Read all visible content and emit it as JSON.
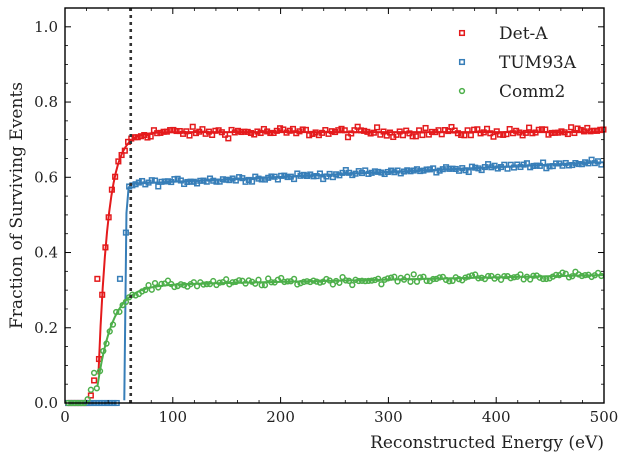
{
  "chart_data": {
    "type": "scatter",
    "title": "",
    "xlabel": "Reconstructed Energy (eV)",
    "ylabel": "Fraction of Surviving Events",
    "xlim": [
      0,
      500
    ],
    "ylim": [
      0,
      1.05
    ],
    "x_ticks": [
      0,
      100,
      200,
      300,
      400,
      500
    ],
    "y_ticks": [
      0.0,
      0.2,
      0.4,
      0.6,
      0.8,
      1.0
    ],
    "x_tick_labels": [
      "0",
      "100",
      "200",
      "300",
      "400",
      "500"
    ],
    "y_tick_labels": [
      "0.0",
      "0.2",
      "0.4",
      "0.6",
      "0.8",
      "1.0"
    ],
    "threshold_line": {
      "x": 61,
      "style": "dotted",
      "color": "#333333"
    },
    "legend_position": "top-right",
    "series": [
      {
        "name": "Det-A",
        "color": "#e41a1c",
        "marker": "square",
        "threshold": 30,
        "plateau": 0.72,
        "rise_scale": 9,
        "noise": 0.009,
        "drift": 0.0,
        "fit_start": 31,
        "low_points": [
          [
            3,
            0.0
          ],
          [
            6,
            0.0
          ],
          [
            9,
            0.0
          ],
          [
            12,
            0.0
          ],
          [
            15,
            0.0
          ],
          [
            18,
            0.0
          ],
          [
            21,
            0.0
          ],
          [
            24,
            0.02
          ],
          [
            27,
            0.06
          ],
          [
            30,
            0.33
          ]
        ]
      },
      {
        "name": "TUM93A",
        "color": "#377eb8",
        "marker": "square",
        "threshold": 55,
        "plateau": 0.575,
        "rise_scale": 1,
        "noise": 0.006,
        "drift": 0.00013,
        "fit_start": 55,
        "low_points": [
          [
            3,
            0.0
          ],
          [
            6,
            0.0
          ],
          [
            9,
            0.0
          ],
          [
            12,
            0.0
          ],
          [
            15,
            0.0
          ],
          [
            18,
            0.0
          ],
          [
            21,
            0.0
          ],
          [
            24,
            0.0
          ],
          [
            27,
            0.0
          ],
          [
            30,
            0.0
          ],
          [
            33,
            0.0
          ],
          [
            36,
            0.0
          ],
          [
            39,
            0.0
          ],
          [
            42,
            0.0
          ],
          [
            45,
            0.0
          ],
          [
            48,
            0.0
          ],
          [
            51,
            0.33
          ]
        ]
      },
      {
        "name": "Comm2",
        "color": "#4daf4a",
        "marker": "circle",
        "threshold": 28,
        "plateau": 0.31,
        "rise_scale": 14,
        "noise": 0.007,
        "drift": 6e-05,
        "fit_start": 30,
        "low_points": [
          [
            3,
            0.0
          ],
          [
            6,
            0.0
          ],
          [
            9,
            0.0
          ],
          [
            12,
            0.0
          ],
          [
            15,
            0.0
          ],
          [
            18,
            0.0
          ],
          [
            21,
            0.01
          ],
          [
            24,
            0.035
          ],
          [
            27,
            0.08
          ]
        ]
      }
    ]
  }
}
